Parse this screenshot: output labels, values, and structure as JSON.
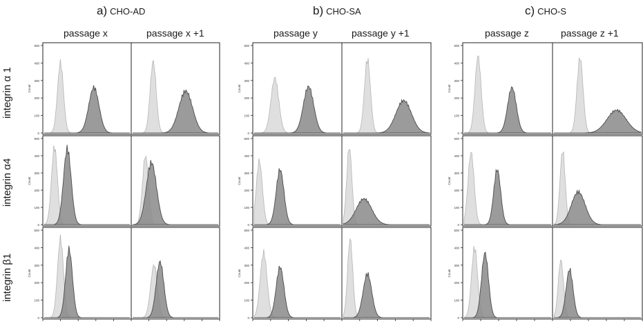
{
  "panels": [
    {
      "letter": "a)",
      "name": "CHO-AD",
      "passages": [
        "passage x",
        "passage x +1"
      ]
    },
    {
      "letter": "b)",
      "name": "CHO-SA",
      "passages": [
        "passage y",
        "passage y +1"
      ]
    },
    {
      "letter": "c)",
      "name": "CHO-S",
      "passages": [
        "passage z",
        "passage z +1"
      ]
    }
  ],
  "rows": [
    "integrin α 1",
    "integrin α4",
    "integrin β1"
  ],
  "y_axis_label": "Count",
  "y_ticks": [
    "0",
    "100",
    "200",
    "300",
    "400",
    "500"
  ],
  "colors": {
    "control": "#dcdcdc",
    "control_edge": "#b5b5b5",
    "sample": "#8a8a8a",
    "sample_edge": "#4a4a4a",
    "frame": "#222222"
  },
  "chart_data": {
    "type": "histogram",
    "x_scale": "log",
    "ylim": [
      0,
      500
    ],
    "series_legend": [
      "control (light grey)",
      "integrin stain (dark grey)"
    ],
    "histograms": [
      {
        "panel": "CHO-AD",
        "passage": "passage x",
        "marker": "integrin α 1",
        "control": {
          "peak_pos": 0.19,
          "peak_count": 400,
          "width": 0.035
        },
        "sample": {
          "peak_pos": 0.58,
          "peak_count": 260,
          "width": 0.06
        }
      },
      {
        "panel": "CHO-AD",
        "passage": "passage x +1",
        "marker": "integrin α 1",
        "control": {
          "peak_pos": 0.24,
          "peak_count": 410,
          "width": 0.035
        },
        "sample": {
          "peak_pos": 0.62,
          "peak_count": 240,
          "width": 0.08
        }
      },
      {
        "panel": "CHO-AD",
        "passage": "passage x",
        "marker": "integrin α4",
        "control": {
          "peak_pos": 0.12,
          "peak_count": 450,
          "width": 0.035
        },
        "sample": {
          "peak_pos": 0.27,
          "peak_count": 440,
          "width": 0.045
        }
      },
      {
        "panel": "CHO-AD",
        "passage": "passage x +1",
        "marker": "integrin α4",
        "control": {
          "peak_pos": 0.15,
          "peak_count": 400,
          "width": 0.035
        },
        "sample": {
          "peak_pos": 0.22,
          "peak_count": 360,
          "width": 0.06
        }
      },
      {
        "panel": "CHO-AD",
        "passage": "passage x",
        "marker": "integrin β1",
        "control": {
          "peak_pos": 0.19,
          "peak_count": 450,
          "width": 0.035
        },
        "sample": {
          "peak_pos": 0.29,
          "peak_count": 390,
          "width": 0.04
        }
      },
      {
        "panel": "CHO-AD",
        "passage": "passage x +1",
        "marker": "integrin β1",
        "control": {
          "peak_pos": 0.25,
          "peak_count": 300,
          "width": 0.04
        },
        "sample": {
          "peak_pos": 0.32,
          "peak_count": 320,
          "width": 0.045
        }
      },
      {
        "panel": "CHO-SA",
        "passage": "passage y",
        "marker": "integrin α 1",
        "control": {
          "peak_pos": 0.24,
          "peak_count": 315,
          "width": 0.045
        },
        "sample": {
          "peak_pos": 0.63,
          "peak_count": 265,
          "width": 0.06
        }
      },
      {
        "panel": "CHO-SA",
        "passage": "passage y +1",
        "marker": "integrin α 1",
        "control": {
          "peak_pos": 0.28,
          "peak_count": 420,
          "width": 0.035
        },
        "sample": {
          "peak_pos": 0.7,
          "peak_count": 185,
          "width": 0.09
        }
      },
      {
        "panel": "CHO-SA",
        "passage": "passage y",
        "marker": "integrin α4",
        "control": {
          "peak_pos": 0.06,
          "peak_count": 370,
          "width": 0.035
        },
        "sample": {
          "peak_pos": 0.3,
          "peak_count": 320,
          "width": 0.045
        }
      },
      {
        "panel": "CHO-SA",
        "passage": "passage y +1",
        "marker": "integrin α4",
        "control": {
          "peak_pos": 0.07,
          "peak_count": 450,
          "width": 0.03
        },
        "sample": {
          "peak_pos": 0.24,
          "peak_count": 150,
          "width": 0.09
        }
      },
      {
        "panel": "CHO-SA",
        "passage": "passage y",
        "marker": "integrin β1",
        "control": {
          "peak_pos": 0.11,
          "peak_count": 370,
          "width": 0.04
        },
        "sample": {
          "peak_pos": 0.3,
          "peak_count": 290,
          "width": 0.045
        }
      },
      {
        "panel": "CHO-SA",
        "passage": "passage y +1",
        "marker": "integrin β1",
        "control": {
          "peak_pos": 0.08,
          "peak_count": 450,
          "width": 0.03
        },
        "sample": {
          "peak_pos": 0.28,
          "peak_count": 250,
          "width": 0.05
        }
      },
      {
        "panel": "CHO-S",
        "passage": "passage z",
        "marker": "integrin α 1",
        "control": {
          "peak_pos": 0.16,
          "peak_count": 440,
          "width": 0.035
        },
        "sample": {
          "peak_pos": 0.55,
          "peak_count": 260,
          "width": 0.05
        }
      },
      {
        "panel": "CHO-S",
        "passage": "passage z +1",
        "marker": "integrin α 1",
        "control": {
          "peak_pos": 0.3,
          "peak_count": 430,
          "width": 0.035
        },
        "sample": {
          "peak_pos": 0.72,
          "peak_count": 130,
          "width": 0.11
        }
      },
      {
        "panel": "CHO-S",
        "passage": "passage z",
        "marker": "integrin α4",
        "control": {
          "peak_pos": 0.08,
          "peak_count": 420,
          "width": 0.035
        },
        "sample": {
          "peak_pos": 0.38,
          "peak_count": 320,
          "width": 0.04
        }
      },
      {
        "panel": "CHO-S",
        "passage": "passage z +1",
        "marker": "integrin α4",
        "control": {
          "peak_pos": 0.1,
          "peak_count": 430,
          "width": 0.03
        },
        "sample": {
          "peak_pos": 0.28,
          "peak_count": 190,
          "width": 0.08
        }
      },
      {
        "panel": "CHO-S",
        "passage": "passage z",
        "marker": "integrin β1",
        "control": {
          "peak_pos": 0.12,
          "peak_count": 400,
          "width": 0.035
        },
        "sample": {
          "peak_pos": 0.24,
          "peak_count": 370,
          "width": 0.04
        }
      },
      {
        "panel": "CHO-S",
        "passage": "passage z +1",
        "marker": "integrin β1",
        "control": {
          "peak_pos": 0.08,
          "peak_count": 330,
          "width": 0.03
        },
        "sample": {
          "peak_pos": 0.18,
          "peak_count": 275,
          "width": 0.04
        }
      }
    ]
  }
}
